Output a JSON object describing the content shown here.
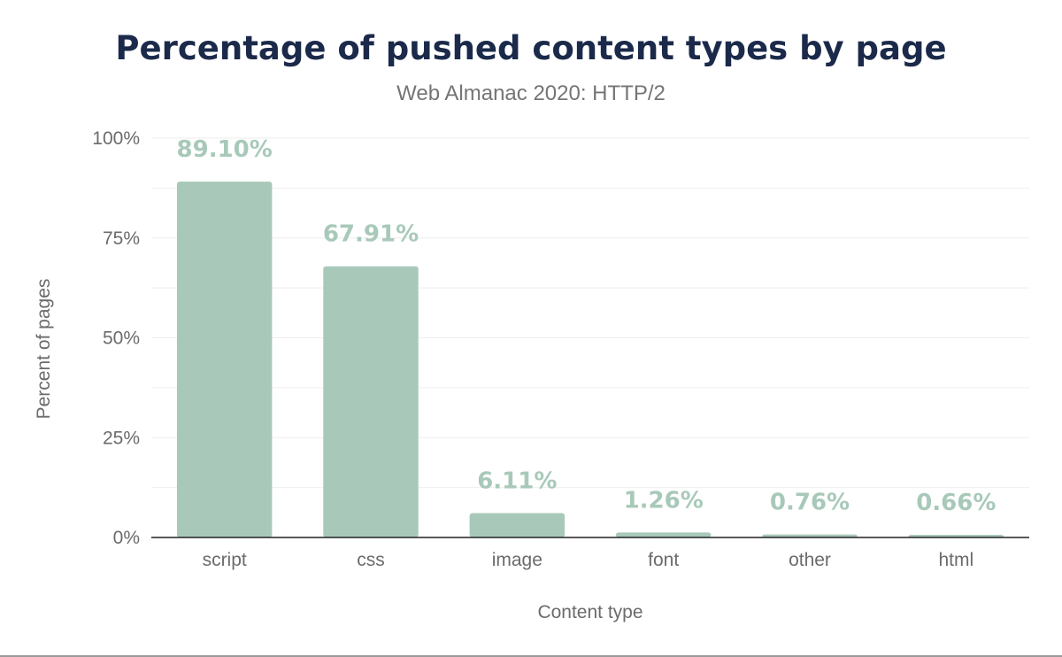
{
  "chart_data": {
    "type": "bar",
    "title": "Percentage of pushed content types by page",
    "subtitle": "Web Almanac 2020: HTTP/2",
    "xlabel": "Content type",
    "ylabel": "Percent of pages",
    "categories": [
      "script",
      "css",
      "image",
      "font",
      "other",
      "html"
    ],
    "values": [
      89.1,
      67.91,
      6.11,
      1.26,
      0.76,
      0.66
    ],
    "data_labels": [
      "89.10%",
      "67.91%",
      "6.11%",
      "1.26%",
      "0.76%",
      "0.66%"
    ],
    "ylim": [
      0,
      100
    ],
    "yticks": [
      0,
      25,
      50,
      75,
      100
    ],
    "ytick_labels": [
      "0%",
      "25%",
      "50%",
      "75%",
      "100%"
    ],
    "grid": true,
    "legend": "none",
    "colors": {
      "bar": "#a8c9b9",
      "data_label": "#a8c9b9",
      "title": "#1b2a4a",
      "grid": "#eeeeee",
      "axis": "#222222"
    }
  }
}
